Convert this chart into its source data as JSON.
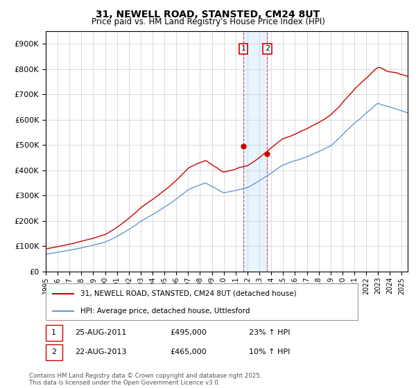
{
  "title": "31, NEWELL ROAD, STANSTED, CM24 8UT",
  "subtitle": "Price paid vs. HM Land Registry's House Price Index (HPI)",
  "legend_line1": "31, NEWELL ROAD, STANSTED, CM24 8UT (detached house)",
  "legend_line2": "HPI: Average price, detached house, Uttlesford",
  "annotation1_label": "1",
  "annotation1_date": "25-AUG-2011",
  "annotation1_price": "£495,000",
  "annotation1_hpi": "23% ↑ HPI",
  "annotation1_year": 2011.65,
  "annotation1_value": 495000,
  "annotation2_label": "2",
  "annotation2_date": "22-AUG-2013",
  "annotation2_price": "£465,000",
  "annotation2_hpi": "10% ↑ HPI",
  "annotation2_year": 2013.65,
  "annotation2_value": 465000,
  "footer": "Contains HM Land Registry data © Crown copyright and database right 2025.\nThis data is licensed under the Open Government Licence v3.0.",
  "red_color": "#cc0000",
  "blue_color": "#6699cc",
  "background_color": "#ffffff",
  "grid_color": "#cccccc",
  "shade_color": "#ddeeff",
  "ylim": [
    0,
    950000
  ],
  "ytick_step": 100000,
  "xmin": 1995,
  "xmax": 2025.5
}
